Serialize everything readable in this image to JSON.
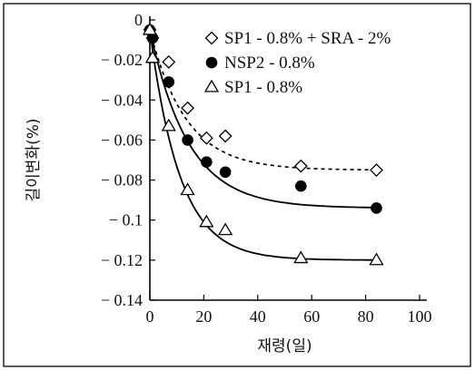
{
  "chart_data": {
    "type": "scatter",
    "xlabel": "재령(일)",
    "ylabel": "길이변화(%)",
    "xlim": [
      0,
      100
    ],
    "ylim": [
      -0.14,
      0
    ],
    "x_ticks": [
      "0",
      "20",
      "40",
      "60",
      "80",
      "100"
    ],
    "y_ticks": [
      "0",
      "-0.02",
      "-0.04",
      "-0.06",
      "-0.08",
      "-0.1",
      "-0.12",
      "-0.14"
    ],
    "grid": false,
    "legend_position": "top-right",
    "series": [
      {
        "name": "SP1 - 0.8% + SRA - 2%",
        "marker": "diamond-open",
        "fit_line": "dashed",
        "x": [
          0,
          1,
          7,
          14,
          21,
          28,
          56,
          84
        ],
        "y": [
          -0.005,
          -0.009,
          -0.021,
          -0.044,
          -0.059,
          -0.058,
          -0.073,
          -0.075
        ],
        "fit_asymptote": -0.075,
        "fit_rate": 0.075
      },
      {
        "name": "NSP2 - 0.8%",
        "marker": "circle-filled",
        "fit_line": "solid",
        "x": [
          0,
          1,
          7,
          14,
          21,
          28,
          56,
          84
        ],
        "y": [
          -0.005,
          -0.009,
          -0.031,
          -0.06,
          -0.071,
          -0.076,
          -0.083,
          -0.094
        ],
        "fit_asymptote": -0.094,
        "fit_rate": 0.07
      },
      {
        "name": "SP1 - 0.8%",
        "marker": "triangle-open",
        "fit_line": "solid",
        "x": [
          0,
          1,
          7,
          14,
          21,
          28,
          56,
          84
        ],
        "y": [
          -0.005,
          -0.019,
          -0.053,
          -0.085,
          -0.101,
          -0.105,
          -0.119,
          -0.12
        ],
        "fit_asymptote": -0.12,
        "fit_rate": 0.09
      }
    ]
  }
}
